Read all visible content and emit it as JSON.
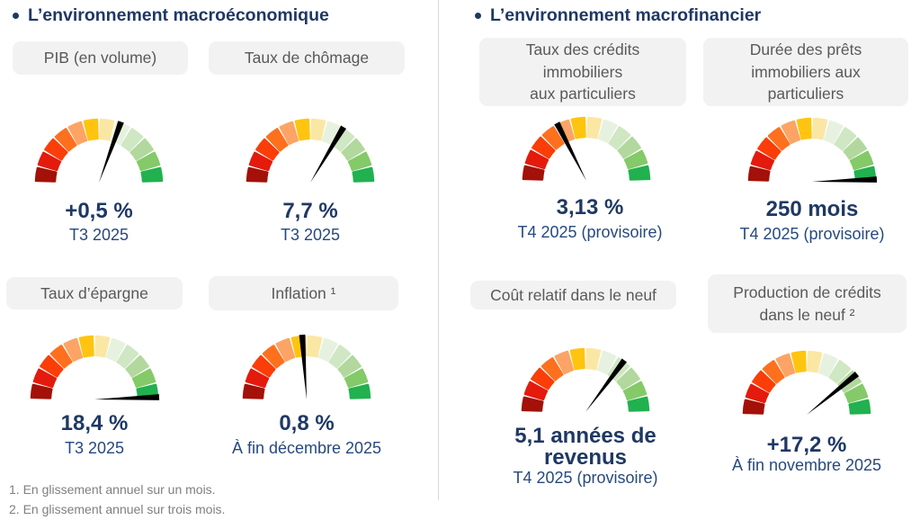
{
  "palette": {
    "navy": "#1f3864",
    "period_text": "#27497e",
    "label_bg": "#f2f2f2",
    "label_text": "#595959",
    "footnote_text": "#7f7f7f",
    "divider": "#d9d9d9",
    "needle": "#000000",
    "gauge_segments": [
      "#a31108",
      "#e41a0c",
      "#fb3d08",
      "#ff701e",
      "#fca465",
      "#fec40f",
      "#fbe7a4",
      "#e6f2df",
      "#cfe7c3",
      "#b2d89e",
      "#84ca68",
      "#21b14f"
    ]
  },
  "sections": [
    {
      "title": "L’environnement macroéconomique",
      "indicators": [
        {
          "label": "PIB (en volume)",
          "value": "+0,5 %",
          "period": "T3 2025",
          "needle_angle_deg": 20
        },
        {
          "label": "Taux de chômage",
          "value": "7,7 %",
          "period": "T3 2025",
          "needle_angle_deg": 31
        },
        {
          "label": "Taux d’épargne",
          "value": "18,4 %",
          "period": "T3 2025",
          "needle_angle_deg": 88
        },
        {
          "label": "Inflation ¹",
          "value": "0,8 %",
          "period": "À fin décembre 2025",
          "needle_angle_deg": -4
        }
      ]
    },
    {
      "title": "L’environnement macrofinancier",
      "indicators": [
        {
          "label": "Taux des crédits\nimmobiliers\naux particuliers",
          "value": "3,13 %",
          "period": "T4 2025 (provisoire)",
          "needle_angle_deg": -27
        },
        {
          "label": "Durée des prêts\nimmobiliers aux\nparticuliers",
          "value": "250 mois",
          "period": "T4 2025 (provisoire)",
          "needle_angle_deg": 88
        },
        {
          "label": "Coût relatif dans le neuf",
          "value": "5,1 années de\nrevenus",
          "period": "T4 2025 (provisoire)",
          "needle_angle_deg": 37
        },
        {
          "label": "Production de crédits\ndans le neuf ²",
          "value": "+17,2 %",
          "period": "À fin novembre 2025",
          "needle_angle_deg": 51
        }
      ]
    }
  ],
  "footnotes": [
    "1. En glissement annuel sur un mois.",
    "2. En glissement annuel sur trois mois."
  ],
  "chart_data": [
    {
      "type": "gauge",
      "title": "PIB (en volume)",
      "value": 0.5,
      "unit": "%",
      "display_value": "+0,5 %",
      "period": "T3 2025",
      "needle_fraction": 0.61,
      "segments": 12,
      "scale": "red (left) to green (right)"
    },
    {
      "type": "gauge",
      "title": "Taux de chômage",
      "value": 7.7,
      "unit": "%",
      "display_value": "7,7 %",
      "period": "T3 2025",
      "needle_fraction": 0.67,
      "segments": 12,
      "scale": "red (left) to green (right)"
    },
    {
      "type": "gauge",
      "title": "Taux d’épargne",
      "value": 18.4,
      "unit": "%",
      "display_value": "18,4 %",
      "period": "T3 2025",
      "needle_fraction": 0.99,
      "segments": 12,
      "scale": "red (left) to green (right)"
    },
    {
      "type": "gauge",
      "title": "Inflation",
      "value": 0.8,
      "unit": "%",
      "display_value": "0,8 %",
      "period": "À fin décembre 2025",
      "needle_fraction": 0.48,
      "segments": 12,
      "scale": "red (left) to green (right)"
    },
    {
      "type": "gauge",
      "title": "Taux des crédits immobiliers aux particuliers",
      "value": 3.13,
      "unit": "%",
      "display_value": "3,13 %",
      "period": "T4 2025 (provisoire)",
      "needle_fraction": 0.35,
      "segments": 12,
      "scale": "red (left) to green (right)"
    },
    {
      "type": "gauge",
      "title": "Durée des prêts immobiliers aux particuliers",
      "value": 250,
      "unit": "mois",
      "display_value": "250 mois",
      "period": "T4 2025 (provisoire)",
      "needle_fraction": 0.99,
      "segments": 12,
      "scale": "red (left) to green (right)"
    },
    {
      "type": "gauge",
      "title": "Coût relatif dans le neuf",
      "value": 5.1,
      "unit": "années de revenus",
      "display_value": "5,1 années de revenus",
      "period": "T4 2025 (provisoire)",
      "needle_fraction": 0.71,
      "segments": 12,
      "scale": "red (left) to green (right)"
    },
    {
      "type": "gauge",
      "title": "Production de crédits dans le neuf",
      "value": 17.2,
      "unit": "%",
      "display_value": "+17,2 %",
      "period": "À fin novembre 2025",
      "needle_fraction": 0.78,
      "segments": 12,
      "scale": "red (left) to green (right)"
    }
  ]
}
